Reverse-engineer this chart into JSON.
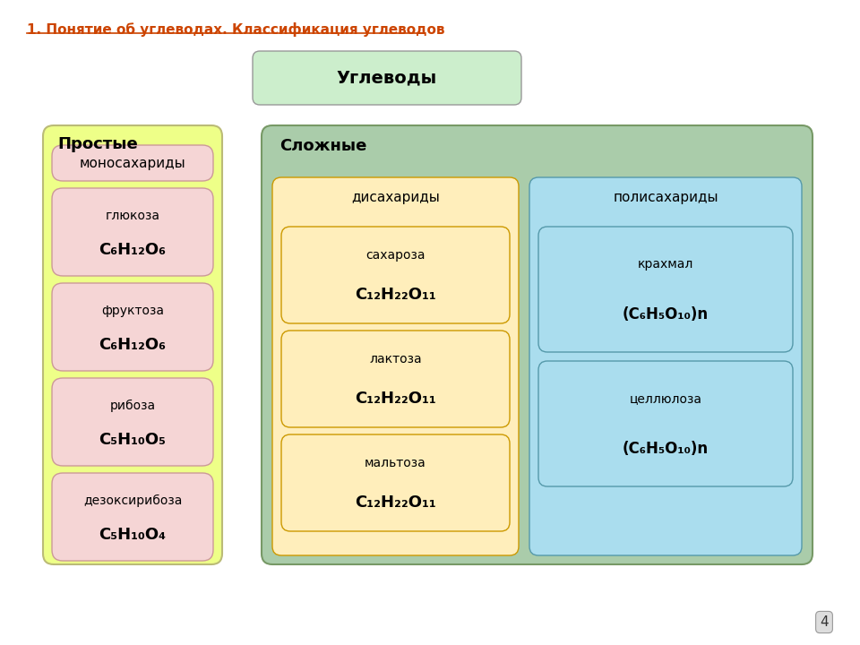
{
  "title": "1. Понятие об углеводах. Классификация углеводов",
  "title_color": "#cc4400",
  "background_color": "#ffffff",
  "uglevody_box": {
    "text": "Углеводы",
    "bg": "#cceecc",
    "border": "#999999"
  },
  "simple_header": "Простые",
  "simple_bg": "#eeff88",
  "complex_header": "Сложные",
  "complex_bg": "#aaccaa",
  "monosah_label": "моносахариды",
  "monosah_bg": "#f5d5d5",
  "monosah_border": "#cc9999",
  "simple_items": [
    {
      "name": "глюкоза",
      "formula": "C₆H₁₂O₆"
    },
    {
      "name": "фруктоза",
      "formula": "C₆H₁₂O₆"
    },
    {
      "name": "рибоза",
      "formula": "C₅H₁₀O₅"
    },
    {
      "name": "дезоксирибоза",
      "formula": "C₅H₁₀O₄"
    }
  ],
  "disah_label": "дисахариды",
  "disah_bg": "#ffeebb",
  "disah_border": "#cc9900",
  "disah_items": [
    {
      "name": "сахароза",
      "formula": "C₁₂H₂₂O₁₁"
    },
    {
      "name": "лактоза",
      "formula": "C₁₂H₂₂O₁₁"
    },
    {
      "name": "мальтоза",
      "formula": "C₁₂H₂₂O₁₁"
    }
  ],
  "polisah_label": "полисахариды",
  "polisah_bg": "#aaddee",
  "polisah_border": "#5599aa",
  "polisah_items": [
    {
      "name": "крахмал",
      "formula": "(C₆H₅O₁₀)n"
    },
    {
      "name": "целлюлоза",
      "formula": "(C₆H₅O₁₀)n"
    }
  ],
  "page_num": "4"
}
